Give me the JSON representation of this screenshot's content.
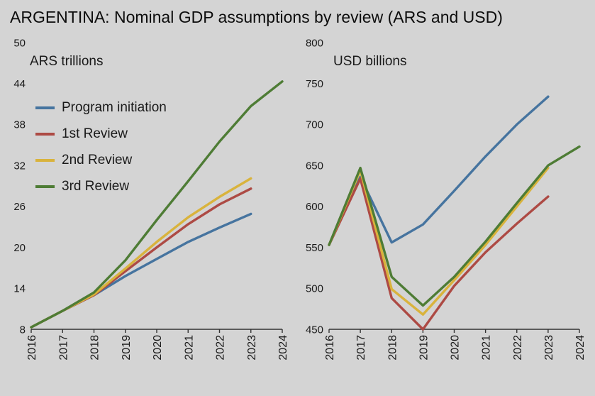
{
  "page": {
    "title": "ARGENTINA: Nominal GDP assumptions by review (ARS and USD)",
    "background_color": "#d4d4d4"
  },
  "legend": {
    "position": "upper-left-of-ars-chart",
    "items": [
      {
        "label": "Program initiation",
        "color": "#46749f"
      },
      {
        "label": "1st Review",
        "color": "#ad4a44"
      },
      {
        "label": "2nd Review",
        "color": "#d9b33c"
      },
      {
        "label": "3rd Review",
        "color": "#4e7c35"
      }
    ]
  },
  "chart_data": [
    {
      "type": "line",
      "title": "ARS trillions",
      "x": [
        2016,
        2017,
        2018,
        2019,
        2020,
        2021,
        2022,
        2023,
        2024
      ],
      "ylim": [
        8,
        50
      ],
      "yticks": [
        8,
        14,
        20,
        26,
        32,
        38,
        44,
        50
      ],
      "grid": false,
      "series": [
        {
          "name": "Program initiation",
          "color": "#46749f",
          "values": [
            8.3,
            10.7,
            13.0,
            15.8,
            18.3,
            20.8,
            22.9,
            24.9,
            null
          ]
        },
        {
          "name": "1st Review",
          "color": "#ad4a44",
          "values": [
            8.3,
            10.7,
            13.0,
            16.5,
            20.0,
            23.4,
            26.3,
            28.6,
            null
          ]
        },
        {
          "name": "2nd Review",
          "color": "#d9b33c",
          "values": [
            8.3,
            10.7,
            13.1,
            16.9,
            20.8,
            24.4,
            27.4,
            30.1,
            null
          ]
        },
        {
          "name": "3rd Review",
          "color": "#4e7c35",
          "values": [
            8.3,
            10.7,
            13.4,
            18.1,
            24.0,
            29.7,
            35.5,
            40.7,
            44.3
          ]
        }
      ]
    },
    {
      "type": "line",
      "title": "USD billions",
      "x": [
        2016,
        2017,
        2018,
        2019,
        2020,
        2021,
        2022,
        2023,
        2024
      ],
      "ylim": [
        450,
        800
      ],
      "yticks": [
        450,
        500,
        550,
        600,
        650,
        700,
        750,
        800
      ],
      "grid": false,
      "series": [
        {
          "name": "Program initiation",
          "color": "#46749f",
          "values": [
            553,
            636,
            556,
            578,
            619,
            661,
            700,
            734,
            null
          ]
        },
        {
          "name": "1st Review",
          "color": "#ad4a44",
          "values": [
            553,
            634,
            488,
            450,
            503,
            544,
            579,
            612,
            null
          ]
        },
        {
          "name": "2nd Review",
          "color": "#d9b33c",
          "values": [
            553,
            644,
            499,
            468,
            510,
            553,
            600,
            647,
            null
          ]
        },
        {
          "name": "3rd Review",
          "color": "#4e7c35",
          "values": [
            553,
            647,
            514,
            479,
            514,
            557,
            604,
            650,
            673
          ]
        }
      ]
    }
  ]
}
